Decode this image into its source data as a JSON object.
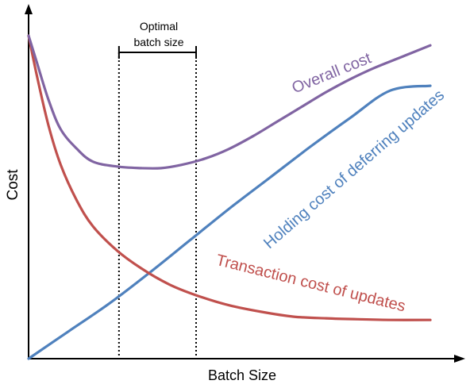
{
  "chart_data": {
    "type": "line",
    "title": "",
    "xlabel": "Batch Size",
    "ylabel": "Cost",
    "xlim": [
      0,
      100
    ],
    "ylim": [
      0,
      100
    ],
    "grid": false,
    "legend": "none",
    "series": [
      {
        "name": "Overall cost",
        "color": "#8064a2",
        "x": [
          0,
          2,
          5,
          8,
          12,
          16,
          22,
          28,
          33,
          38,
          44,
          50,
          56,
          62,
          68,
          74,
          80,
          86,
          92,
          100
        ],
        "y": [
          100,
          92,
          80,
          71,
          65,
          61,
          59.5,
          59,
          59,
          60,
          62,
          65,
          69,
          73.5,
          78,
          82.5,
          86.5,
          90,
          93,
          97
        ]
      },
      {
        "name": "Holding cost of deferring updates",
        "color": "#4f81bd",
        "x": [
          0,
          10,
          20,
          30,
          40,
          50,
          60,
          70,
          80,
          90,
          100
        ],
        "y": [
          0,
          8.5,
          17,
          26.5,
          36.5,
          46.5,
          56,
          65.5,
          74.5,
          83,
          84.5
        ]
      },
      {
        "name": "Transaction cost of updates",
        "color": "#c0504d",
        "x": [
          0,
          2,
          5,
          8,
          12,
          16,
          22,
          28,
          35,
          42,
          50,
          58,
          66,
          74,
          82,
          90,
          100
        ],
        "y": [
          100,
          88,
          72,
          60,
          49,
          41,
          33.5,
          28,
          23,
          19.5,
          16.5,
          14.5,
          13,
          12.5,
          12.2,
          12,
          12
        ]
      }
    ],
    "annotations": [
      {
        "text": "Optimal batch size",
        "line1": "Optimal",
        "line2": "batch size",
        "x_range": [
          22.5,
          41.7
        ]
      }
    ]
  }
}
